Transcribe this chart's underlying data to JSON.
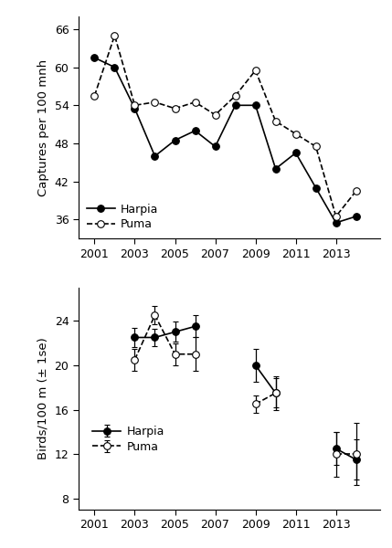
{
  "top": {
    "harpia_x": [
      2001,
      2002,
      2003,
      2004,
      2005,
      2006,
      2007,
      2008,
      2009,
      2010,
      2011,
      2012,
      2013,
      2014
    ],
    "harpia_y": [
      61.5,
      60.0,
      53.5,
      46.0,
      48.5,
      50.0,
      47.5,
      54.0,
      54.0,
      44.0,
      46.5,
      41.0,
      35.5,
      36.5
    ],
    "puma_x": [
      2001,
      2002,
      2003,
      2004,
      2005,
      2006,
      2007,
      2008,
      2009,
      2010,
      2011,
      2012,
      2013,
      2014
    ],
    "puma_y": [
      55.5,
      65.0,
      54.0,
      54.5,
      53.5,
      54.5,
      52.5,
      55.5,
      59.5,
      51.5,
      49.5,
      47.5,
      36.5,
      40.5
    ],
    "ylabel": "Captures per 100 mnh",
    "ylim": [
      33.0,
      68.0
    ],
    "yticks": [
      36,
      42,
      48,
      54,
      60,
      66
    ],
    "xlim": [
      2000.2,
      2015.2
    ],
    "xticks": [
      2001,
      2003,
      2005,
      2007,
      2009,
      2011,
      2013
    ]
  },
  "bottom": {
    "harpia_segments": [
      {
        "x": [
          2003,
          2004,
          2005,
          2006
        ],
        "y": [
          22.5,
          22.5,
          23.0,
          23.5
        ],
        "ye": [
          0.9,
          0.8,
          0.9,
          1.0
        ]
      },
      {
        "x": [
          2009,
          2010
        ],
        "y": [
          20.0,
          17.5
        ],
        "ye": [
          1.5,
          1.3
        ]
      },
      {
        "x": [
          2013,
          2014
        ],
        "y": [
          12.5,
          11.5
        ],
        "ye": [
          1.5,
          1.8
        ]
      }
    ],
    "puma_segments": [
      {
        "x": [
          2003,
          2004,
          2005,
          2006
        ],
        "y": [
          20.5,
          24.5,
          21.0,
          21.0
        ],
        "ye": [
          1.0,
          0.8,
          1.0,
          1.5
        ]
      },
      {
        "x": [
          2009,
          2010
        ],
        "y": [
          16.5,
          17.5
        ],
        "ye": [
          0.8,
          1.5
        ]
      },
      {
        "x": [
          2013,
          2014
        ],
        "y": [
          12.0,
          12.0
        ],
        "ye": [
          2.0,
          2.8
        ]
      }
    ],
    "ylabel": "Birds/100 m (± 1se)",
    "ylim": [
      7.0,
      27.0
    ],
    "yticks": [
      8,
      12,
      16,
      20,
      24
    ],
    "xlim": [
      2000.2,
      2015.2
    ],
    "xticks": [
      2001,
      2003,
      2005,
      2007,
      2009,
      2011,
      2013
    ]
  },
  "line_color": "#000000",
  "legend_harpia": "Harpia",
  "legend_puma": "Puma"
}
